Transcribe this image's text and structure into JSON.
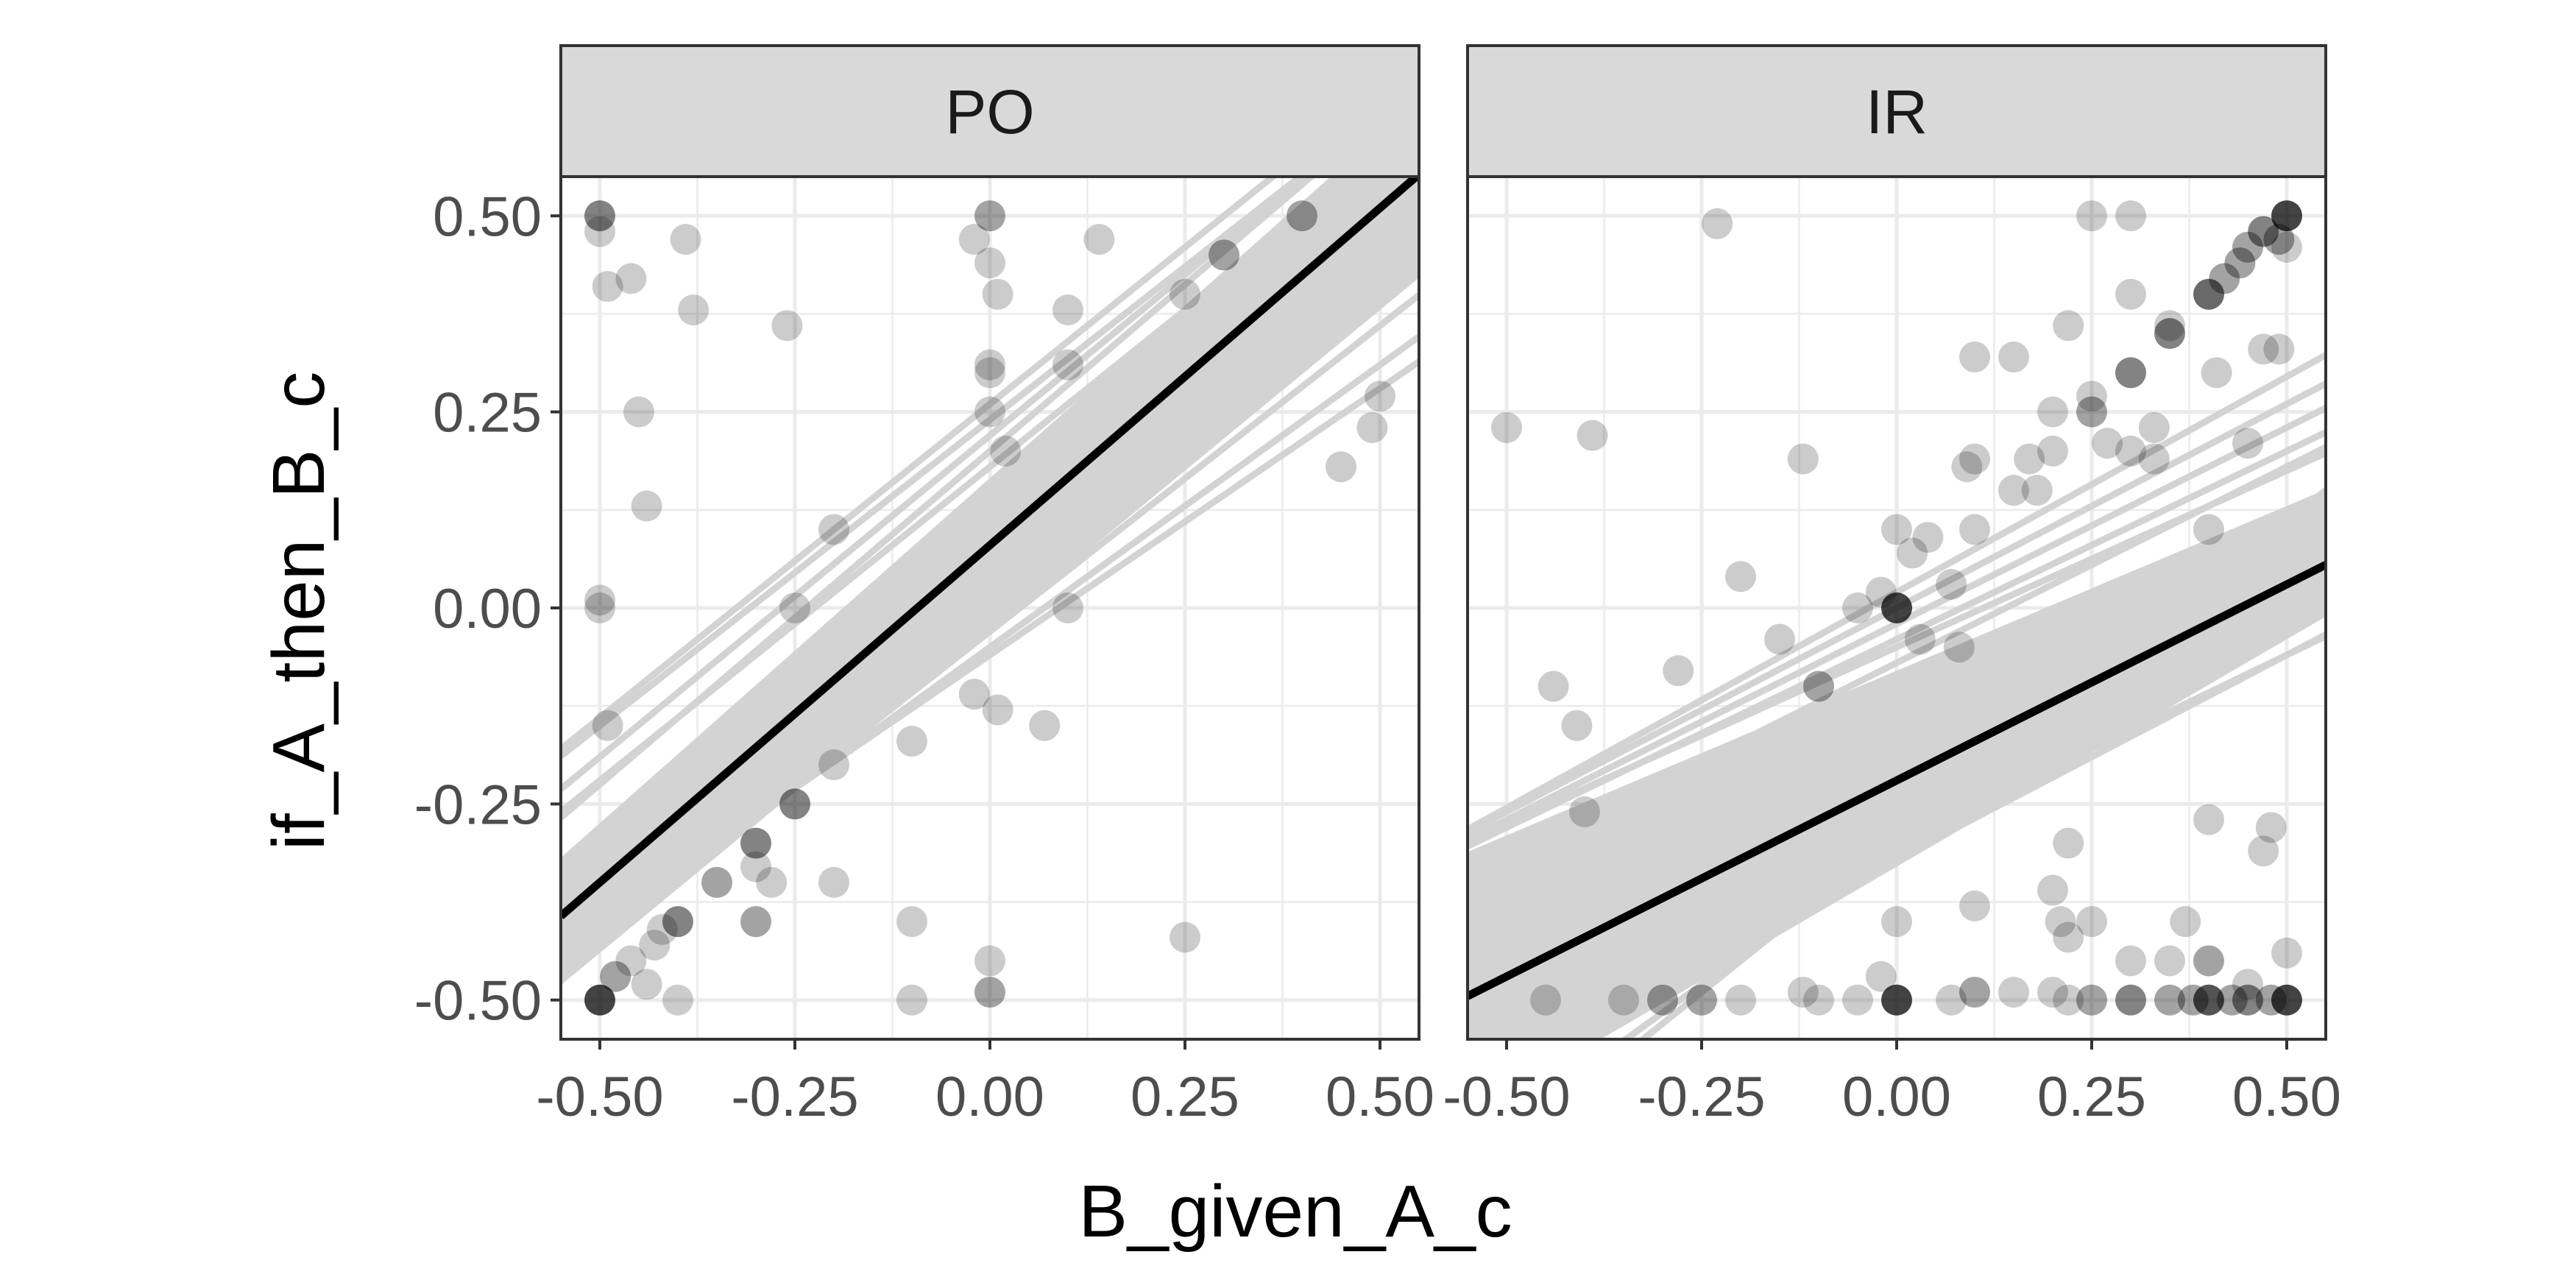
{
  "chart_data": {
    "type": "scatter",
    "layout": "faceted",
    "xlabel": "B_given_A_c",
    "ylabel": "if_A_then_B_c",
    "xlim": [
      -0.55,
      0.55
    ],
    "ylim": [
      -0.55,
      0.55
    ],
    "x_ticks": [
      -0.5,
      -0.25,
      0,
      0.25,
      0.5
    ],
    "y_ticks": [
      -0.5,
      -0.25,
      0,
      0.25,
      0.5
    ],
    "x_tick_labels": [
      "-0.50",
      "-0.25",
      "0.00",
      "0.25",
      "0.50"
    ],
    "y_tick_labels": [
      "-0.50",
      "-0.25",
      "0.00",
      "0.25",
      "0.50"
    ],
    "grid": true,
    "colors": {
      "panel_border": "#333333",
      "strip_fill": "#d9d9d9",
      "grid": "#ebebeb",
      "band": "#d3d3d3",
      "fit_line": "#000000",
      "point": "#000000"
    },
    "facets": [
      {
        "label": "PO",
        "fit_line": {
          "intercept": 0.08,
          "slope": 0.86
        },
        "band_lines": {
          "upper": [
            {
              "intercept": 0.26,
              "slope": 0.8
            },
            {
              "intercept": 0.24,
              "slope": 0.78
            },
            {
              "intercept": 0.22,
              "slope": 0.82
            },
            {
              "intercept": 0.2,
              "slope": 0.85
            },
            {
              "intercept": 0.18,
              "slope": 0.8
            },
            {
              "intercept": 0.16,
              "slope": 0.88
            }
          ],
          "lower": [
            {
              "intercept": -0.03,
              "slope": 0.78
            },
            {
              "intercept": -0.05,
              "slope": 0.72
            },
            {
              "intercept": -0.06,
              "slope": 0.68
            }
          ],
          "band_min": {
            "intercept": -0.03,
            "slope": 0.82
          },
          "band_max": {
            "intercept": 0.16,
            "slope": 0.88
          }
        },
        "points": [
          {
            "x": -0.5,
            "y": 0.5,
            "n": 3
          },
          {
            "x": -0.5,
            "y": 0.48,
            "n": 1
          },
          {
            "x": -0.49,
            "y": 0.41,
            "n": 1
          },
          {
            "x": -0.46,
            "y": 0.42,
            "n": 1
          },
          {
            "x": -0.45,
            "y": 0.25,
            "n": 1
          },
          {
            "x": -0.44,
            "y": 0.13,
            "n": 1
          },
          {
            "x": -0.39,
            "y": 0.47,
            "n": 1
          },
          {
            "x": -0.38,
            "y": 0.38,
            "n": 1
          },
          {
            "x": -0.26,
            "y": 0.36,
            "n": 1
          },
          {
            "x": -0.5,
            "y": 0.01,
            "n": 1
          },
          {
            "x": -0.5,
            "y": 0.0,
            "n": 1
          },
          {
            "x": -0.49,
            "y": -0.15,
            "n": 1
          },
          {
            "x": -0.5,
            "y": -0.5,
            "n": 6
          },
          {
            "x": -0.48,
            "y": -0.47,
            "n": 2
          },
          {
            "x": -0.46,
            "y": -0.45,
            "n": 1
          },
          {
            "x": -0.44,
            "y": -0.48,
            "n": 1
          },
          {
            "x": -0.43,
            "y": -0.43,
            "n": 1
          },
          {
            "x": -0.42,
            "y": -0.41,
            "n": 1
          },
          {
            "x": -0.4,
            "y": -0.4,
            "n": 3
          },
          {
            "x": -0.4,
            "y": -0.5,
            "n": 1
          },
          {
            "x": -0.35,
            "y": -0.35,
            "n": 2
          },
          {
            "x": -0.3,
            "y": -0.3,
            "n": 3
          },
          {
            "x": -0.3,
            "y": -0.4,
            "n": 2
          },
          {
            "x": -0.3,
            "y": -0.33,
            "n": 1
          },
          {
            "x": -0.28,
            "y": -0.35,
            "n": 1
          },
          {
            "x": -0.25,
            "y": -0.25,
            "n": 3
          },
          {
            "x": -0.25,
            "y": 0.0,
            "n": 1
          },
          {
            "x": -0.2,
            "y": -0.2,
            "n": 1
          },
          {
            "x": -0.2,
            "y": -0.35,
            "n": 1
          },
          {
            "x": -0.2,
            "y": 0.1,
            "n": 1
          },
          {
            "x": -0.1,
            "y": -0.17,
            "n": 1
          },
          {
            "x": -0.1,
            "y": -0.4,
            "n": 1
          },
          {
            "x": -0.1,
            "y": -0.5,
            "n": 1
          },
          {
            "x": 0.0,
            "y": 0.5,
            "n": 2
          },
          {
            "x": -0.02,
            "y": 0.47,
            "n": 1
          },
          {
            "x": 0.0,
            "y": 0.44,
            "n": 1
          },
          {
            "x": 0.01,
            "y": 0.4,
            "n": 1
          },
          {
            "x": 0.0,
            "y": 0.31,
            "n": 1
          },
          {
            "x": 0.0,
            "y": 0.3,
            "n": 1
          },
          {
            "x": 0.0,
            "y": 0.25,
            "n": 1
          },
          {
            "x": 0.02,
            "y": 0.2,
            "n": 1
          },
          {
            "x": -0.02,
            "y": -0.11,
            "n": 1
          },
          {
            "x": 0.01,
            "y": -0.13,
            "n": 1
          },
          {
            "x": 0.0,
            "y": -0.45,
            "n": 1
          },
          {
            "x": 0.0,
            "y": -0.49,
            "n": 2
          },
          {
            "x": 0.07,
            "y": -0.15,
            "n": 1
          },
          {
            "x": 0.1,
            "y": 0.38,
            "n": 1
          },
          {
            "x": 0.1,
            "y": 0.31,
            "n": 1
          },
          {
            "x": 0.1,
            "y": 0.0,
            "n": 1
          },
          {
            "x": 0.14,
            "y": 0.47,
            "n": 1
          },
          {
            "x": 0.25,
            "y": 0.4,
            "n": 1
          },
          {
            "x": 0.25,
            "y": -0.42,
            "n": 1
          },
          {
            "x": 0.3,
            "y": 0.45,
            "n": 2
          },
          {
            "x": 0.4,
            "y": 0.5,
            "n": 2
          },
          {
            "x": 0.45,
            "y": 0.18,
            "n": 1
          },
          {
            "x": 0.49,
            "y": 0.23,
            "n": 1
          },
          {
            "x": 0.5,
            "y": 0.27,
            "n": 1
          }
        ]
      },
      {
        "label": "IR",
        "fit_line": {
          "intercept": -0.22,
          "slope": 0.5
        },
        "band_lines": {
          "upper": [
            {
              "intercept": 0.02,
              "slope": 0.55
            },
            {
              "intercept": 0.0,
              "slope": 0.52
            },
            {
              "intercept": -0.02,
              "slope": 0.5
            },
            {
              "intercept": -0.04,
              "slope": 0.48
            },
            {
              "intercept": -0.05,
              "slope": 0.45
            },
            {
              "intercept": -0.07,
              "slope": 0.5
            }
          ],
          "lower": [
            {
              "intercept": -0.3,
              "slope": 0.48
            },
            {
              "intercept": -0.32,
              "slope": 0.52
            },
            {
              "intercept": -0.3,
              "slope": 0.72
            },
            {
              "intercept": -0.29,
              "slope": 0.8
            }
          ],
          "band_min": {
            "intercept": -0.33,
            "slope": 0.58
          },
          "band_max": {
            "intercept": -0.08,
            "slope": 0.42
          }
        },
        "points": [
          {
            "x": -0.5,
            "y": 0.23,
            "n": 1
          },
          {
            "x": -0.39,
            "y": 0.22,
            "n": 1
          },
          {
            "x": -0.23,
            "y": 0.49,
            "n": 1
          },
          {
            "x": -0.44,
            "y": -0.1,
            "n": 1
          },
          {
            "x": -0.41,
            "y": -0.15,
            "n": 1
          },
          {
            "x": -0.4,
            "y": -0.26,
            "n": 1
          },
          {
            "x": -0.28,
            "y": -0.08,
            "n": 1
          },
          {
            "x": -0.2,
            "y": 0.04,
            "n": 1
          },
          {
            "x": -0.15,
            "y": -0.04,
            "n": 1
          },
          {
            "x": -0.12,
            "y": 0.19,
            "n": 1
          },
          {
            "x": -0.1,
            "y": -0.1,
            "n": 2
          },
          {
            "x": -0.05,
            "y": 0.0,
            "n": 1
          },
          {
            "x": -0.02,
            "y": 0.02,
            "n": 1
          },
          {
            "x": 0.0,
            "y": 0.0,
            "n": 6
          },
          {
            "x": 0.0,
            "y": 0.1,
            "n": 1
          },
          {
            "x": 0.02,
            "y": 0.07,
            "n": 1
          },
          {
            "x": 0.03,
            "y": -0.04,
            "n": 1
          },
          {
            "x": 0.04,
            "y": 0.09,
            "n": 1
          },
          {
            "x": 0.07,
            "y": 0.03,
            "n": 1
          },
          {
            "x": 0.08,
            "y": -0.05,
            "n": 1
          },
          {
            "x": 0.09,
            "y": 0.18,
            "n": 1
          },
          {
            "x": 0.1,
            "y": 0.19,
            "n": 1
          },
          {
            "x": 0.1,
            "y": 0.32,
            "n": 1
          },
          {
            "x": 0.1,
            "y": 0.1,
            "n": 1
          },
          {
            "x": 0.15,
            "y": 0.32,
            "n": 1
          },
          {
            "x": 0.15,
            "y": 0.15,
            "n": 1
          },
          {
            "x": 0.17,
            "y": 0.19,
            "n": 1
          },
          {
            "x": 0.18,
            "y": 0.15,
            "n": 1
          },
          {
            "x": 0.2,
            "y": 0.2,
            "n": 1
          },
          {
            "x": 0.2,
            "y": 0.25,
            "n": 1
          },
          {
            "x": 0.22,
            "y": 0.36,
            "n": 1
          },
          {
            "x": 0.25,
            "y": 0.25,
            "n": 2
          },
          {
            "x": 0.25,
            "y": 0.27,
            "n": 1
          },
          {
            "x": 0.25,
            "y": 0.5,
            "n": 1
          },
          {
            "x": 0.27,
            "y": 0.21,
            "n": 1
          },
          {
            "x": 0.3,
            "y": 0.3,
            "n": 3
          },
          {
            "x": 0.3,
            "y": 0.5,
            "n": 1
          },
          {
            "x": 0.3,
            "y": 0.4,
            "n": 1
          },
          {
            "x": 0.3,
            "y": 0.2,
            "n": 1
          },
          {
            "x": 0.33,
            "y": 0.23,
            "n": 1
          },
          {
            "x": 0.33,
            "y": 0.19,
            "n": 1
          },
          {
            "x": 0.35,
            "y": 0.35,
            "n": 3
          },
          {
            "x": 0.35,
            "y": 0.36,
            "n": 1
          },
          {
            "x": 0.4,
            "y": 0.4,
            "n": 4
          },
          {
            "x": 0.4,
            "y": 0.1,
            "n": 1
          },
          {
            "x": 0.41,
            "y": 0.3,
            "n": 1
          },
          {
            "x": 0.42,
            "y": 0.42,
            "n": 2
          },
          {
            "x": 0.44,
            "y": 0.44,
            "n": 2
          },
          {
            "x": 0.45,
            "y": 0.46,
            "n": 2
          },
          {
            "x": 0.45,
            "y": 0.21,
            "n": 1
          },
          {
            "x": 0.47,
            "y": 0.48,
            "n": 3
          },
          {
            "x": 0.47,
            "y": 0.33,
            "n": 1
          },
          {
            "x": 0.49,
            "y": 0.47,
            "n": 2
          },
          {
            "x": 0.49,
            "y": 0.33,
            "n": 1
          },
          {
            "x": 0.5,
            "y": 0.5,
            "n": 6
          },
          {
            "x": 0.5,
            "y": 0.46,
            "n": 1
          },
          {
            "x": 0.4,
            "y": -0.27,
            "n": 1
          },
          {
            "x": 0.48,
            "y": -0.28,
            "n": 1
          },
          {
            "x": 0.47,
            "y": -0.31,
            "n": 1
          },
          {
            "x": 0.1,
            "y": -0.38,
            "n": 1
          },
          {
            "x": 0.2,
            "y": -0.36,
            "n": 1
          },
          {
            "x": 0.22,
            "y": -0.3,
            "n": 1
          },
          {
            "x": 0.21,
            "y": -0.4,
            "n": 1
          },
          {
            "x": 0.22,
            "y": -0.42,
            "n": 1
          },
          {
            "x": 0.25,
            "y": -0.4,
            "n": 1
          },
          {
            "x": 0.3,
            "y": -0.45,
            "n": 1
          },
          {
            "x": 0.35,
            "y": -0.45,
            "n": 1
          },
          {
            "x": 0.37,
            "y": -0.4,
            "n": 1
          },
          {
            "x": 0.4,
            "y": -0.45,
            "n": 2
          },
          {
            "x": 0.45,
            "y": -0.48,
            "n": 1
          },
          {
            "x": 0.5,
            "y": -0.44,
            "n": 1
          },
          {
            "x": -0.45,
            "y": -0.5,
            "n": 1
          },
          {
            "x": -0.35,
            "y": -0.5,
            "n": 1
          },
          {
            "x": -0.3,
            "y": -0.5,
            "n": 2
          },
          {
            "x": -0.25,
            "y": -0.5,
            "n": 2
          },
          {
            "x": -0.2,
            "y": -0.5,
            "n": 1
          },
          {
            "x": -0.12,
            "y": -0.49,
            "n": 1
          },
          {
            "x": -0.1,
            "y": -0.5,
            "n": 1
          },
          {
            "x": -0.05,
            "y": -0.5,
            "n": 1
          },
          {
            "x": -0.02,
            "y": -0.47,
            "n": 1
          },
          {
            "x": 0.0,
            "y": -0.5,
            "n": 6
          },
          {
            "x": 0.0,
            "y": -0.4,
            "n": 1
          },
          {
            "x": 0.07,
            "y": -0.5,
            "n": 1
          },
          {
            "x": 0.1,
            "y": -0.49,
            "n": 2
          },
          {
            "x": 0.15,
            "y": -0.49,
            "n": 1
          },
          {
            "x": 0.2,
            "y": -0.49,
            "n": 1
          },
          {
            "x": 0.22,
            "y": -0.5,
            "n": 1
          },
          {
            "x": 0.25,
            "y": -0.5,
            "n": 2
          },
          {
            "x": 0.3,
            "y": -0.5,
            "n": 3
          },
          {
            "x": 0.35,
            "y": -0.5,
            "n": 2
          },
          {
            "x": 0.38,
            "y": -0.5,
            "n": 2
          },
          {
            "x": 0.4,
            "y": -0.5,
            "n": 5
          },
          {
            "x": 0.43,
            "y": -0.5,
            "n": 2
          },
          {
            "x": 0.45,
            "y": -0.5,
            "n": 3
          },
          {
            "x": 0.48,
            "y": -0.5,
            "n": 2
          },
          {
            "x": 0.5,
            "y": -0.5,
            "n": 6
          }
        ]
      }
    ]
  }
}
